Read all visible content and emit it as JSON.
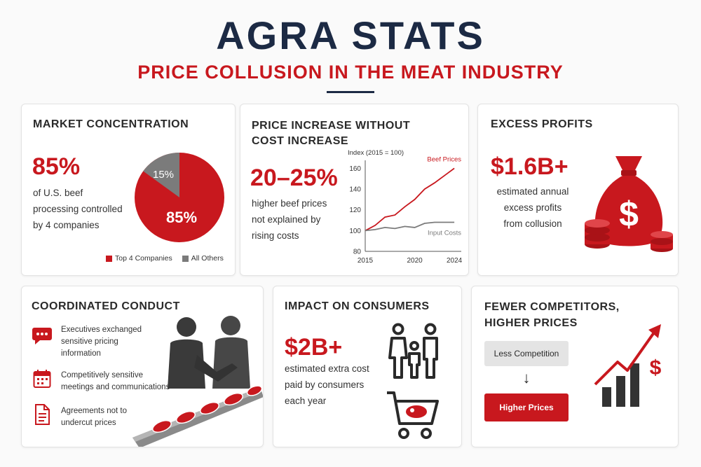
{
  "header": {
    "title": "AGRA STATS",
    "subtitle": "PRICE COLLUSION IN THE MEAT INDUSTRY"
  },
  "colors": {
    "accent": "#c8181e",
    "navy": "#1c2a44",
    "gray": "#7b7b7b"
  },
  "market": {
    "title": "MARKET CONCENTRATION",
    "stat": "85%",
    "desc": [
      "of U.S. beef",
      "processing controlled",
      "by 4 companies"
    ],
    "pie_small_label": "15%",
    "pie_big_label": "85%",
    "legend": [
      {
        "label": "Top 4 Companies",
        "color": "#c8181e"
      },
      {
        "label": "All Others",
        "color": "#7b7b7b"
      }
    ]
  },
  "price": {
    "title": [
      "PRICE INCREASE WITHOUT",
      "COST INCREASE"
    ],
    "stat": "20–25%",
    "desc": [
      "higher beef prices",
      "not explained by",
      "rising costs"
    ]
  },
  "chart_data": {
    "type": "line",
    "title": "Index (2015 = 100)",
    "xlabel": "",
    "ylabel": "",
    "x": [
      2015,
      2016,
      2017,
      2018,
      2019,
      2020,
      2021,
      2022,
      2023,
      2024
    ],
    "xticks": [
      2015,
      2020,
      2024
    ],
    "yticks": [
      80,
      100,
      120,
      140,
      160
    ],
    "ylim": [
      80,
      165
    ],
    "xlim": [
      2015,
      2024.7
    ],
    "series": [
      {
        "name": "Beef Prices",
        "color": "#c8181e",
        "values": [
          100,
          105,
          113,
          115,
          123,
          130,
          140,
          146,
          153,
          160
        ],
        "x": [
          2015,
          2016,
          2017,
          2018,
          2019,
          2020,
          2021,
          2022,
          2023,
          2024
        ]
      },
      {
        "name": "Input Costs",
        "color": "#7b7b7b",
        "values": [
          100,
          101,
          103,
          102,
          104,
          103,
          107,
          108,
          108,
          108
        ],
        "x": [
          2015,
          2016,
          2017,
          2018,
          2019,
          2020,
          2021,
          2022,
          2023,
          2024
        ]
      }
    ]
  },
  "profits": {
    "title": "EXCESS PROFITS",
    "stat": "$1.6B+",
    "desc": [
      "estimated annual",
      "excess profits",
      "from collusion"
    ],
    "bag_symbol": "$"
  },
  "conduct": {
    "title": "COORDINATED CONDUCT",
    "items": [
      {
        "icon": "chat-bubble-icon",
        "lines": [
          "Executives exchanged",
          "sensitive pricing",
          "information"
        ]
      },
      {
        "icon": "calendar-icon",
        "lines": [
          "Competitively sensitive",
          "meetings and communications"
        ]
      },
      {
        "icon": "document-icon",
        "lines": [
          "Agreements not to",
          "undercut prices"
        ]
      }
    ]
  },
  "consumers": {
    "title": "IMPACT ON CONSUMERS",
    "stat": "$2B+",
    "desc": [
      "estimated extra cost",
      "paid by consumers",
      "each year"
    ]
  },
  "competitors": {
    "title": [
      "FEWER COMPETITORS,",
      "HIGHER PRICES"
    ],
    "less_label": "Less Competition",
    "higher_label": "Higher Prices",
    "arrow": "↓",
    "dollar": "$"
  }
}
